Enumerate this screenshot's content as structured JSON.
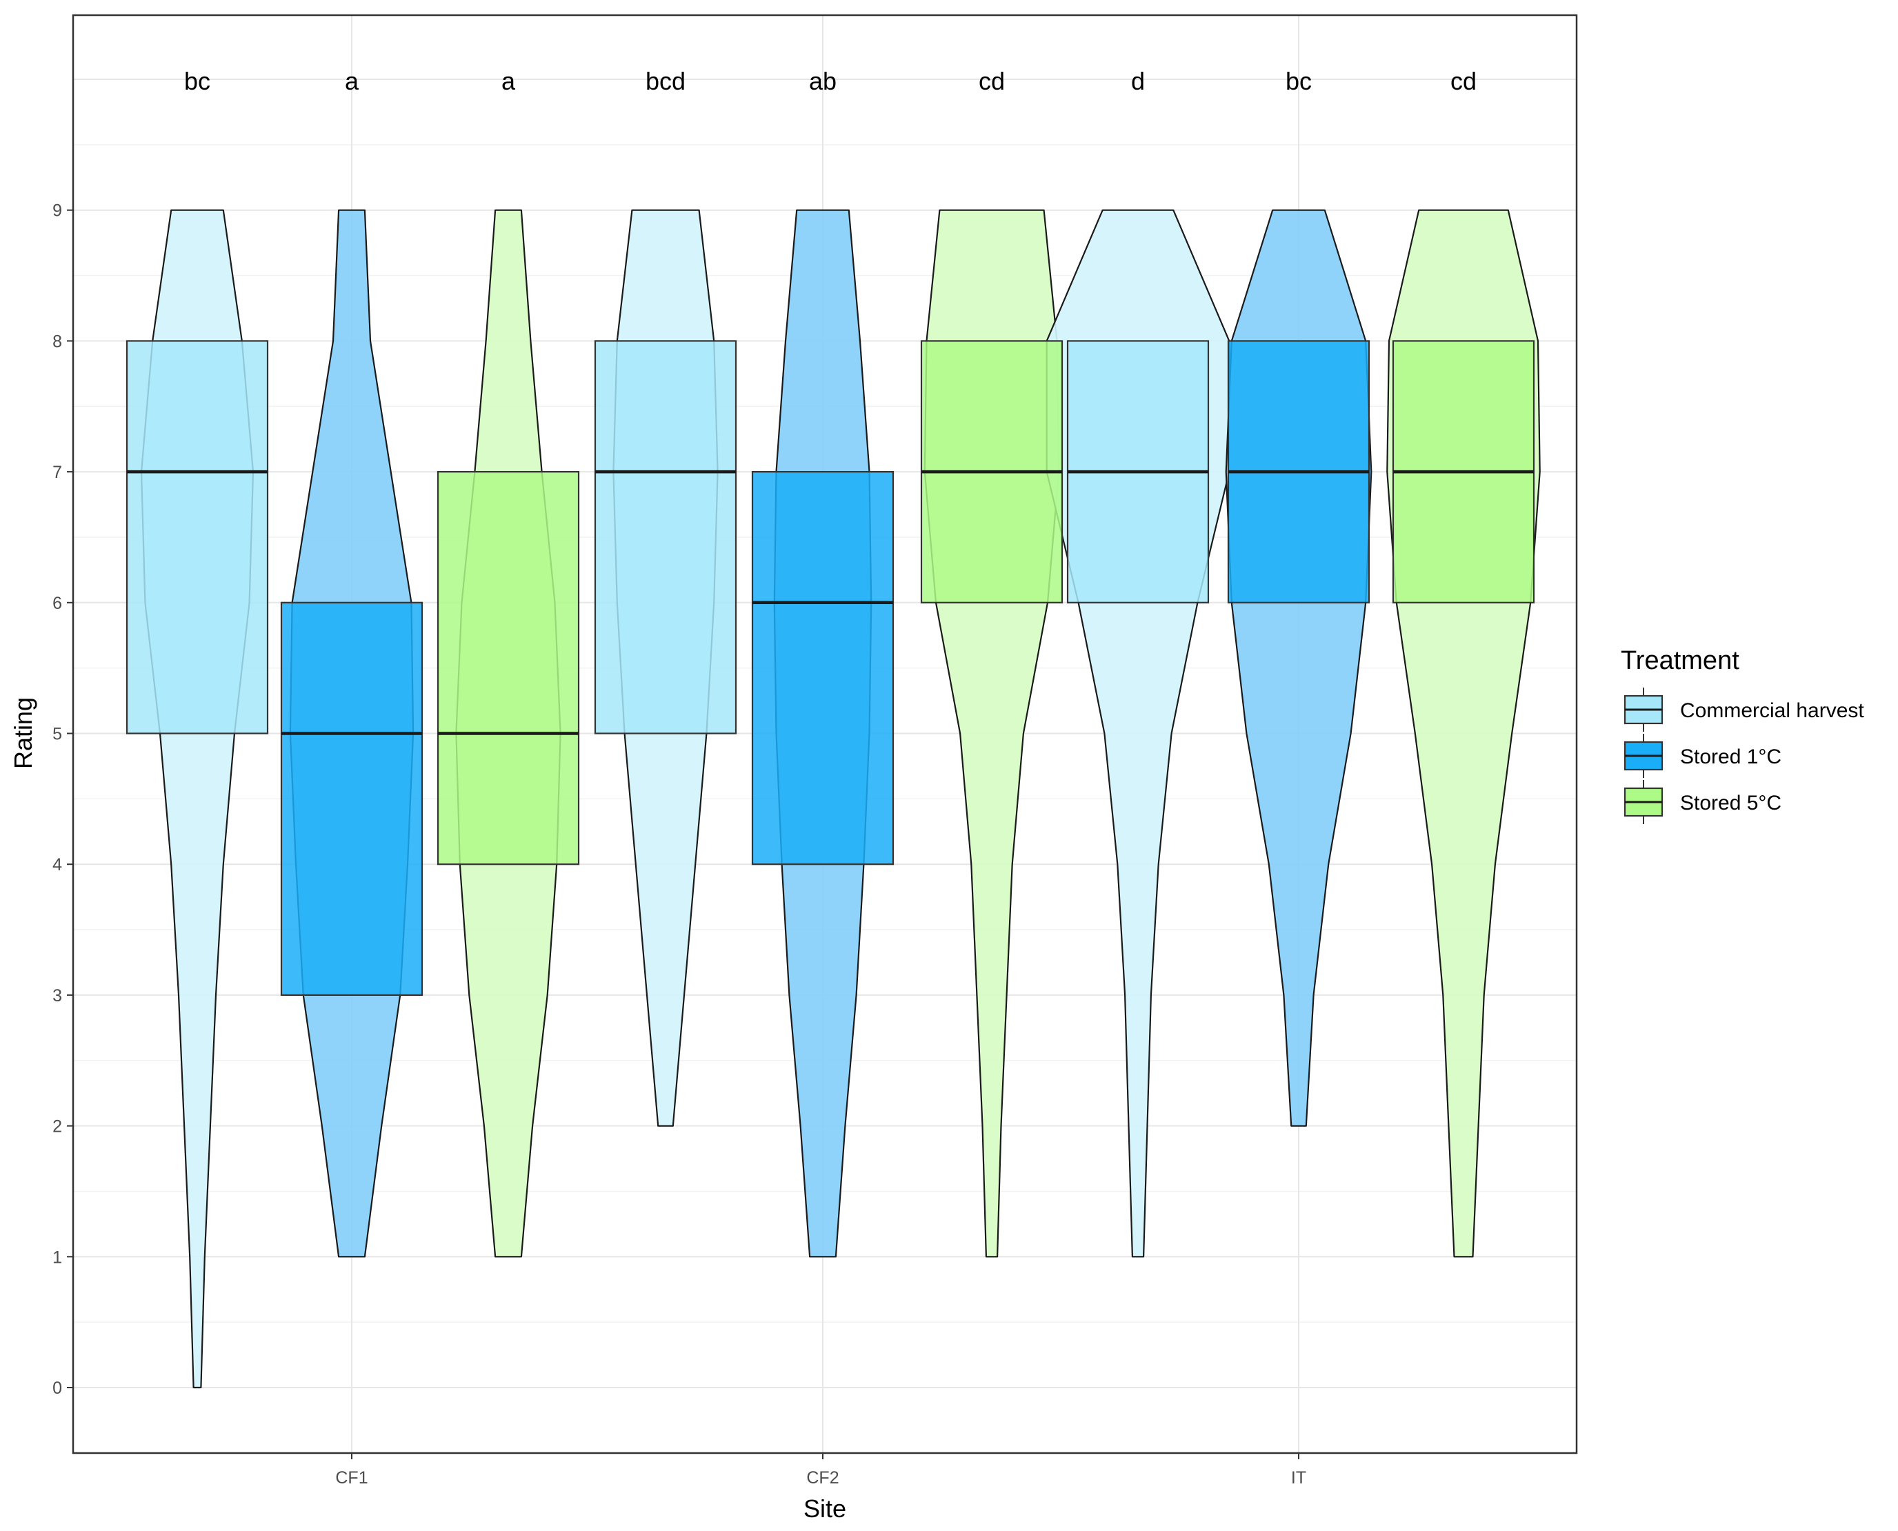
{
  "chart_data": {
    "type": "box-violin",
    "title": "",
    "xlabel": "Site",
    "ylabel": "Rating",
    "categories": [
      "CF1",
      "CF2",
      "IT"
    ],
    "ylim": [
      -0.5,
      10.3
    ],
    "yticks": [
      0,
      1,
      2,
      3,
      4,
      5,
      6,
      7,
      8,
      9
    ],
    "grid": true,
    "legend": {
      "title": "Treatment",
      "position": "right",
      "entries": [
        {
          "name": "Commercial harvest",
          "color": "#A6E8FA"
        },
        {
          "name": "Stored 1°C",
          "color": "#1BAEF8"
        },
        {
          "name": "Stored 5°C",
          "color": "#AEFA87"
        }
      ]
    },
    "colors": {
      "Commercial harvest": {
        "box": "#A6E8FA",
        "violin": "#D3F3FC"
      },
      "Stored 1°C": {
        "box": "#1BAEF8",
        "violin": "#85CFFB"
      },
      "Stored 5°C": {
        "box": "#AEFA87",
        "violin": "#D6FCC3"
      }
    },
    "groups": [
      {
        "site": "CF1",
        "treatment": "Commercial harvest",
        "letter": "bc",
        "q1": 5,
        "median": 7,
        "q3": 8,
        "violin": [
          [
            0,
            0.2
          ],
          [
            1,
            0.4
          ],
          [
            2,
            0.7
          ],
          [
            3,
            1.0
          ],
          [
            4,
            1.4
          ],
          [
            5,
            2.0
          ],
          [
            6,
            2.8
          ],
          [
            7,
            3.0
          ],
          [
            8,
            2.4
          ],
          [
            9,
            1.4
          ]
        ]
      },
      {
        "site": "CF1",
        "treatment": "Stored 1°C",
        "letter": "a",
        "q1": 3,
        "median": 5,
        "q3": 6,
        "violin": [
          [
            1,
            0.7
          ],
          [
            2,
            1.6
          ],
          [
            3,
            2.6
          ],
          [
            4,
            3.0
          ],
          [
            5,
            3.3
          ],
          [
            6,
            3.2
          ],
          [
            7,
            2.1
          ],
          [
            8,
            1.0
          ],
          [
            9,
            0.7
          ]
        ]
      },
      {
        "site": "CF1",
        "treatment": "Stored 5°C",
        "letter": "a",
        "q1": 4,
        "median": 5,
        "q3": 7,
        "violin": [
          [
            1,
            0.7
          ],
          [
            2,
            1.3
          ],
          [
            3,
            2.1
          ],
          [
            4,
            2.6
          ],
          [
            5,
            2.8
          ],
          [
            6,
            2.5
          ],
          [
            7,
            1.8
          ],
          [
            8,
            1.2
          ],
          [
            9,
            0.7
          ]
        ]
      },
      {
        "site": "CF2",
        "treatment": "Commercial harvest",
        "letter": "bcd",
        "q1": 5,
        "median": 7,
        "q3": 8,
        "violin": [
          [
            2,
            0.4
          ],
          [
            3,
            1.0
          ],
          [
            4,
            1.6
          ],
          [
            5,
            2.2
          ],
          [
            6,
            2.6
          ],
          [
            7,
            2.8
          ],
          [
            8,
            2.6
          ],
          [
            9,
            1.8
          ]
        ]
      },
      {
        "site": "CF2",
        "treatment": "Stored 1°C",
        "letter": "ab",
        "q1": 4,
        "median": 6,
        "q3": 7,
        "violin": [
          [
            1,
            0.7
          ],
          [
            2,
            1.2
          ],
          [
            3,
            1.8
          ],
          [
            4,
            2.2
          ],
          [
            5,
            2.5
          ],
          [
            6,
            2.6
          ],
          [
            7,
            2.5
          ],
          [
            8,
            2.0
          ],
          [
            9,
            1.4
          ]
        ]
      },
      {
        "site": "CF2",
        "treatment": "Stored 5°C",
        "letter": "cd",
        "q1": 6,
        "median": 7,
        "q3": 8,
        "violin": [
          [
            1,
            0.3
          ],
          [
            2,
            0.5
          ],
          [
            3,
            0.8
          ],
          [
            4,
            1.1
          ],
          [
            5,
            1.7
          ],
          [
            6,
            3.0
          ],
          [
            7,
            3.6
          ],
          [
            8,
            3.5
          ],
          [
            9,
            2.8
          ]
        ]
      },
      {
        "site": "IT",
        "treatment": "Commercial harvest",
        "letter": "d",
        "q1": 6,
        "median": 7,
        "q3": 8,
        "violin": [
          [
            1,
            0.3
          ],
          [
            2,
            0.5
          ],
          [
            3,
            0.7
          ],
          [
            4,
            1.1
          ],
          [
            5,
            1.8
          ],
          [
            6,
            3.2
          ],
          [
            7,
            4.9
          ],
          [
            8,
            4.9
          ],
          [
            9,
            1.9
          ]
        ]
      },
      {
        "site": "IT",
        "treatment": "Stored 1°C",
        "letter": "bc",
        "q1": 6,
        "median": 7,
        "q3": 8,
        "violin": [
          [
            2,
            0.4
          ],
          [
            3,
            0.8
          ],
          [
            4,
            1.6
          ],
          [
            5,
            2.8
          ],
          [
            6,
            3.6
          ],
          [
            7,
            3.9
          ],
          [
            8,
            3.6
          ],
          [
            9,
            1.4
          ]
        ]
      },
      {
        "site": "IT",
        "treatment": "Stored 5°C",
        "letter": "cd",
        "q1": 6,
        "median": 7,
        "q3": 8,
        "violin": [
          [
            1,
            0.5
          ],
          [
            2,
            0.8
          ],
          [
            3,
            1.1
          ],
          [
            4,
            1.7
          ],
          [
            5,
            2.6
          ],
          [
            6,
            3.6
          ],
          [
            7,
            4.1
          ],
          [
            8,
            4.0
          ],
          [
            9,
            2.4
          ]
        ]
      }
    ]
  }
}
